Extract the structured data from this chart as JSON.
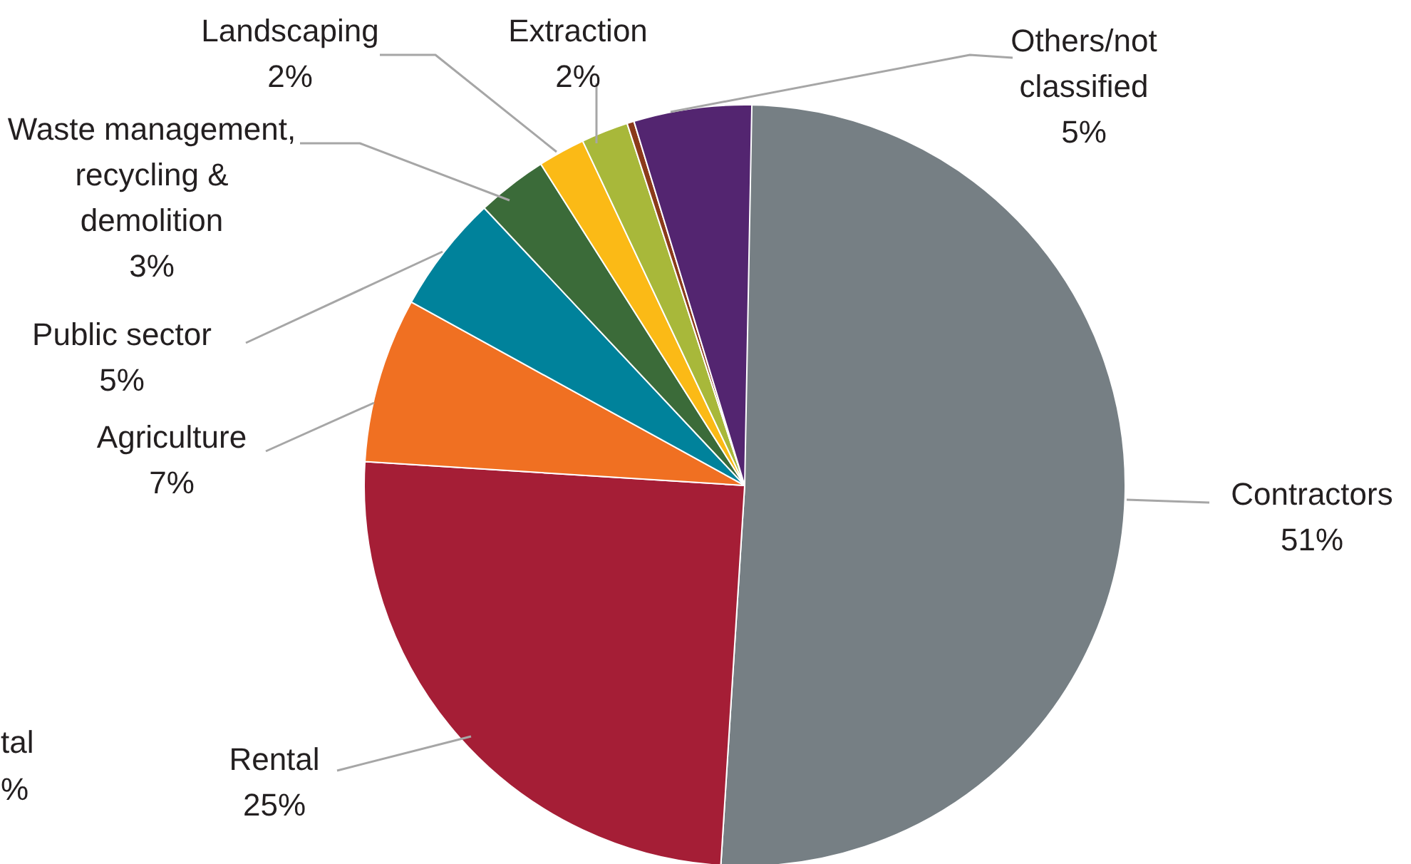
{
  "chart_data": {
    "type": "pie",
    "categories": [
      "Contractors",
      "Rental",
      "Agriculture",
      "Public sector",
      "Waste management,\nrecycling &\ndemolition",
      "Landscaping",
      "Extraction",
      null,
      "Others/not\nclassified"
    ],
    "values": [
      51,
      25,
      7,
      5,
      3,
      2,
      2,
      0.3,
      5
    ],
    "value_labels": [
      "51%",
      "25%",
      "7%",
      "5%",
      "3%",
      "2%",
      "2%",
      null,
      "5%"
    ],
    "colors": [
      "#767f84",
      "#a51e36",
      "#f07022",
      "#00829b",
      "#3b6b39",
      "#fbba16",
      "#a8b83a",
      "#8b3a1a",
      "#532570"
    ],
    "annotations": [
      "tal\n%"
    ]
  }
}
